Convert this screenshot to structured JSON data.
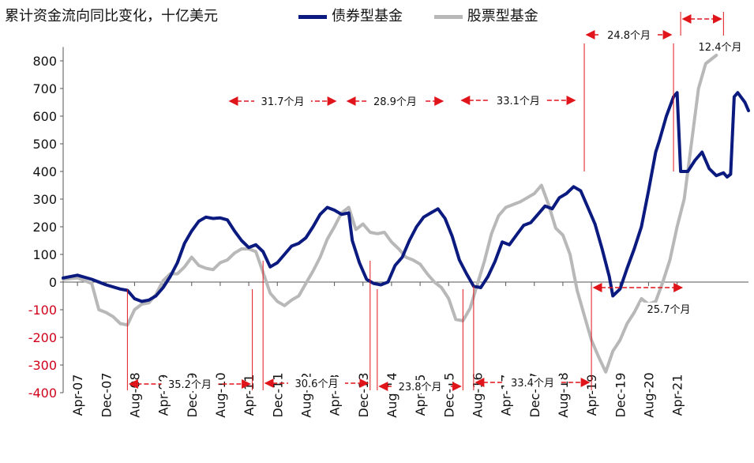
{
  "chart_data": {
    "type": "line",
    "title": "累计资金流向同比变化，十亿美元",
    "ylim": [
      -400,
      850
    ],
    "yticks": [
      800,
      700,
      600,
      500,
      400,
      300,
      200,
      100,
      0,
      -100,
      -200,
      -300,
      -400
    ],
    "xticks": [
      "Apr-07",
      "Dec-07",
      "Aug-08",
      "Apr-09",
      "Dec-09",
      "Aug-10",
      "Apr-11",
      "Dec-11",
      "Aug-12",
      "Apr-13",
      "Dec-13",
      "Aug-14",
      "Apr-15",
      "Dec-15",
      "Aug-16",
      "Apr-17",
      "Dec-17",
      "Aug-18",
      "Apr-19",
      "Dec-19",
      "Aug-20",
      "Apr-21"
    ],
    "legend_position": "top",
    "colors": {
      "bond": "#0a1a7f",
      "equity": "#b8b8b8",
      "annotation": "#e0151b"
    },
    "series": [
      {
        "name": "债券型基金",
        "points": [
          [
            0,
            15
          ],
          [
            4,
            25
          ],
          [
            8,
            10
          ],
          [
            12,
            -10
          ],
          [
            16,
            -25
          ],
          [
            18,
            -30
          ],
          [
            20,
            -60
          ],
          [
            22,
            -70
          ],
          [
            24,
            -65
          ],
          [
            26,
            -50
          ],
          [
            28,
            -20
          ],
          [
            30,
            20
          ],
          [
            32,
            70
          ],
          [
            34,
            140
          ],
          [
            36,
            185
          ],
          [
            38,
            220
          ],
          [
            40,
            235
          ],
          [
            42,
            230
          ],
          [
            44,
            232
          ],
          [
            46,
            225
          ],
          [
            48,
            185
          ],
          [
            50,
            150
          ],
          [
            52,
            125
          ],
          [
            54,
            135
          ],
          [
            56,
            110
          ],
          [
            58,
            55
          ],
          [
            60,
            70
          ],
          [
            62,
            100
          ],
          [
            64,
            130
          ],
          [
            66,
            140
          ],
          [
            68,
            160
          ],
          [
            70,
            200
          ],
          [
            72,
            245
          ],
          [
            74,
            270
          ],
          [
            76,
            260
          ],
          [
            78,
            245
          ],
          [
            80,
            250
          ],
          [
            81,
            150
          ],
          [
            83,
            70
          ],
          [
            85,
            10
          ],
          [
            87,
            -5
          ],
          [
            89,
            -10
          ],
          [
            91,
            0
          ],
          [
            93,
            60
          ],
          [
            95,
            90
          ],
          [
            97,
            150
          ],
          [
            99,
            200
          ],
          [
            101,
            235
          ],
          [
            103,
            250
          ],
          [
            105,
            265
          ],
          [
            107,
            230
          ],
          [
            109,
            165
          ],
          [
            111,
            80
          ],
          [
            113,
            30
          ],
          [
            115,
            -15
          ],
          [
            117,
            -20
          ],
          [
            119,
            20
          ],
          [
            121,
            75
          ],
          [
            123,
            145
          ],
          [
            125,
            135
          ],
          [
            127,
            170
          ],
          [
            129,
            205
          ],
          [
            131,
            215
          ],
          [
            133,
            245
          ],
          [
            135,
            275
          ],
          [
            137,
            265
          ],
          [
            139,
            305
          ],
          [
            141,
            320
          ],
          [
            143,
            345
          ],
          [
            145,
            330
          ],
          [
            147,
            270
          ],
          [
            149,
            210
          ],
          [
            151,
            120
          ],
          [
            153,
            20
          ],
          [
            154,
            -50
          ],
          [
            156,
            -25
          ],
          [
            158,
            50
          ],
          [
            160,
            120
          ],
          [
            162,
            200
          ],
          [
            164,
            330
          ],
          [
            166,
            470
          ],
          [
            167,
            510
          ],
          [
            169,
            600
          ],
          [
            171,
            670
          ],
          [
            172,
            685
          ],
          [
            173,
            400
          ],
          [
            175,
            400
          ],
          [
            177,
            440
          ],
          [
            179,
            470
          ],
          [
            181,
            410
          ],
          [
            183,
            385
          ],
          [
            185,
            395
          ],
          [
            186,
            380
          ],
          [
            187,
            390
          ],
          [
            188,
            670
          ],
          [
            189,
            685
          ],
          [
            191,
            650
          ],
          [
            192,
            620
          ]
        ]
      },
      {
        "name": "股票型基金",
        "points": [
          [
            0,
            10
          ],
          [
            4,
            15
          ],
          [
            8,
            -5
          ],
          [
            10,
            -100
          ],
          [
            12,
            -110
          ],
          [
            14,
            -125
          ],
          [
            16,
            -150
          ],
          [
            18,
            -155
          ],
          [
            20,
            -100
          ],
          [
            22,
            -80
          ],
          [
            24,
            -75
          ],
          [
            26,
            -45
          ],
          [
            28,
            5
          ],
          [
            30,
            30
          ],
          [
            32,
            30
          ],
          [
            34,
            55
          ],
          [
            36,
            90
          ],
          [
            38,
            60
          ],
          [
            40,
            50
          ],
          [
            42,
            45
          ],
          [
            44,
            70
          ],
          [
            46,
            80
          ],
          [
            48,
            105
          ],
          [
            50,
            120
          ],
          [
            52,
            120
          ],
          [
            54,
            110
          ],
          [
            56,
            35
          ],
          [
            58,
            -40
          ],
          [
            60,
            -70
          ],
          [
            62,
            -85
          ],
          [
            64,
            -65
          ],
          [
            66,
            -50
          ],
          [
            68,
            -5
          ],
          [
            70,
            40
          ],
          [
            72,
            90
          ],
          [
            74,
            155
          ],
          [
            76,
            200
          ],
          [
            78,
            250
          ],
          [
            80,
            270
          ],
          [
            82,
            190
          ],
          [
            84,
            210
          ],
          [
            86,
            180
          ],
          [
            88,
            175
          ],
          [
            90,
            180
          ],
          [
            92,
            145
          ],
          [
            94,
            120
          ],
          [
            96,
            90
          ],
          [
            98,
            80
          ],
          [
            100,
            65
          ],
          [
            102,
            30
          ],
          [
            104,
            0
          ],
          [
            106,
            -20
          ],
          [
            108,
            -60
          ],
          [
            110,
            -135
          ],
          [
            112,
            -140
          ],
          [
            114,
            -95
          ],
          [
            116,
            -10
          ],
          [
            118,
            75
          ],
          [
            120,
            175
          ],
          [
            122,
            240
          ],
          [
            124,
            270
          ],
          [
            126,
            280
          ],
          [
            128,
            290
          ],
          [
            130,
            305
          ],
          [
            132,
            320
          ],
          [
            134,
            350
          ],
          [
            136,
            280
          ],
          [
            138,
            195
          ],
          [
            140,
            170
          ],
          [
            142,
            100
          ],
          [
            144,
            -30
          ],
          [
            146,
            -120
          ],
          [
            148,
            -210
          ],
          [
            150,
            -270
          ],
          [
            152,
            -325
          ],
          [
            154,
            -250
          ],
          [
            156,
            -210
          ],
          [
            158,
            -150
          ],
          [
            160,
            -110
          ],
          [
            162,
            -60
          ],
          [
            164,
            -80
          ],
          [
            166,
            -70
          ],
          [
            168,
            0
          ],
          [
            170,
            80
          ],
          [
            172,
            200
          ],
          [
            174,
            300
          ],
          [
            176,
            500
          ],
          [
            178,
            700
          ],
          [
            180,
            790
          ],
          [
            181,
            800
          ],
          [
            183,
            820
          ]
        ]
      }
    ],
    "annotations": [
      {
        "label": "31.7个月",
        "from_x": 46,
        "to_x": 77
      },
      {
        "label": "28.9个月",
        "from_x": 79,
        "to_x": 107
      },
      {
        "label": "33.1个月",
        "from_x": 111,
        "to_x": 144
      },
      {
        "label": "24.8个月",
        "from_x": 146,
        "to_x": 171
      },
      {
        "label": "12.4个月",
        "from_x": 173,
        "to_x": 185
      },
      {
        "label": "35.2个月",
        "from_x": 18,
        "to_x": 53
      },
      {
        "label": "30.6个月",
        "from_x": 56,
        "to_x": 86
      },
      {
        "label": "23.8个月",
        "from_x": 88,
        "to_x": 112
      },
      {
        "label": "33.4个月",
        "from_x": 115,
        "to_x": 148
      },
      {
        "label": "25.7个月",
        "from_x": 148,
        "to_x": 174
      }
    ]
  }
}
